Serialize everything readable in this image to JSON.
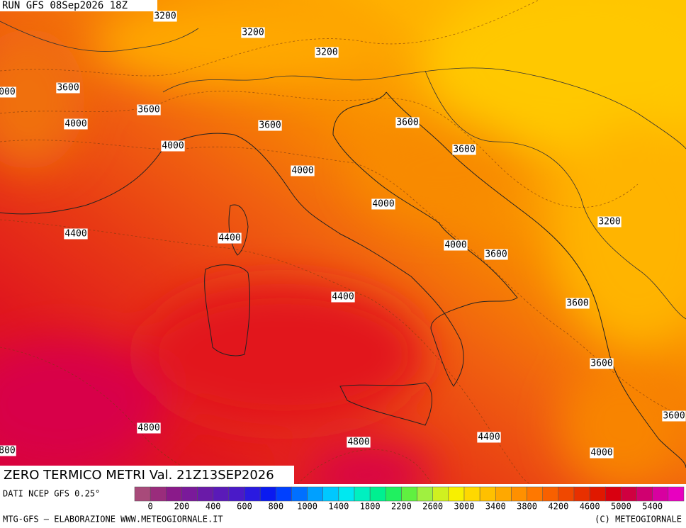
{
  "header": {
    "run": "RUN GFS 08Sep2026 18Z"
  },
  "map": {
    "title": "ZERO TERMICO METRI Val. 21Z13SEP2026",
    "contour_labels": [
      3200,
      3200,
      3200,
      "000",
      3600,
      3600,
      4000,
      3600,
      3600,
      4000,
      3600,
      4000,
      4000,
      3200,
      4400,
      4400,
      4000,
      3600,
      4400,
      3600,
      3600,
      3600,
      4800,
      4400,
      4800,
      800,
      4000
    ]
  },
  "legend": {
    "source": "DATI NCEP GFS 0.25°",
    "ticks": [
      0,
      200,
      400,
      600,
      800,
      1000,
      1400,
      1800,
      2200,
      2600,
      3000,
      3400,
      3800,
      4200,
      4600,
      5000,
      5400
    ],
    "colors": [
      "#a84a7a",
      "#9a2c7c",
      "#8a1a8a",
      "#7a1a9a",
      "#6a1aa8",
      "#5a1ab8",
      "#4a1ac8",
      "#2a1ae0",
      "#0a1af0",
      "#0040ff",
      "#0070ff",
      "#00a0ff",
      "#00c8ff",
      "#00e8f0",
      "#00f0c0",
      "#00f090",
      "#20f060",
      "#60f040",
      "#a0f040",
      "#d0f020",
      "#f8f000",
      "#ffd800",
      "#ffc000",
      "#ffa800",
      "#ff9000",
      "#ff7800",
      "#f86000",
      "#f04800",
      "#e83000",
      "#e01800",
      "#d80010",
      "#d00040",
      "#d00070",
      "#d800a0",
      "#e800c0"
    ]
  },
  "footer": {
    "left": "MTG-GFS — ELABORAZIONE WWW.METEOGIORNALE.IT",
    "right": "(C) METEOGIORNALE"
  }
}
